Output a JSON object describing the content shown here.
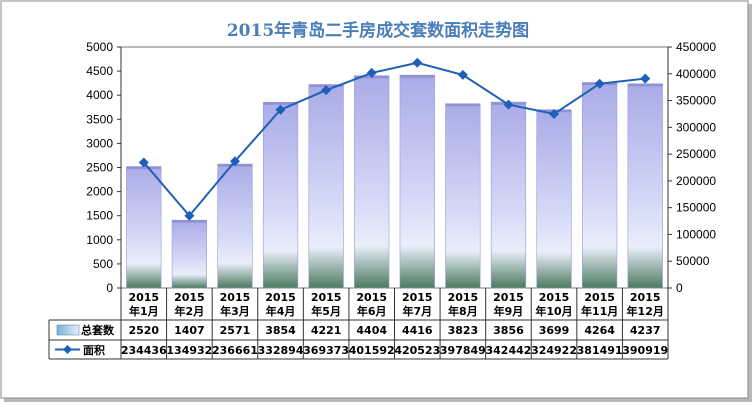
{
  "chart_data": {
    "type": "bar",
    "title": "2015年青岛二手房成交套数面积走势图",
    "categories": [
      [
        "2015",
        "年1月"
      ],
      [
        "2015",
        "年2月"
      ],
      [
        "2015",
        "年3月"
      ],
      [
        "2015",
        "年4月"
      ],
      [
        "2015",
        "年5月"
      ],
      [
        "2015",
        "年6月"
      ],
      [
        "2015",
        "年7月"
      ],
      [
        "2015",
        "年8月"
      ],
      [
        "2015",
        "年9月"
      ],
      [
        "2015",
        "年10月"
      ],
      [
        "2015",
        "年11月"
      ],
      [
        "2015",
        "年12月"
      ]
    ],
    "series": [
      {
        "name": "总套数",
        "type": "bar",
        "axis": "left",
        "values": [
          2520,
          1407,
          2571,
          3854,
          4221,
          4404,
          4416,
          3823,
          3856,
          3699,
          4264,
          4237
        ]
      },
      {
        "name": "面积",
        "type": "line",
        "axis": "right",
        "values": [
          234436,
          134932,
          236661,
          332894,
          369373,
          401592,
          420523,
          397849,
          342442,
          324922,
          381491,
          390919
        ]
      }
    ],
    "y_left": {
      "min": 0,
      "max": 5000,
      "step": 500
    },
    "y_right": {
      "min": 0,
      "max": 450000,
      "step": 50000
    },
    "legend_placement": "data-table-below",
    "grid": false,
    "colors": {
      "bar_top": "#a9abe6",
      "bar_mid": "#d4d8f5",
      "bar_bottom": "#4b7a5e",
      "line": "#1f5fb8",
      "title": "#4a7ebb"
    }
  }
}
